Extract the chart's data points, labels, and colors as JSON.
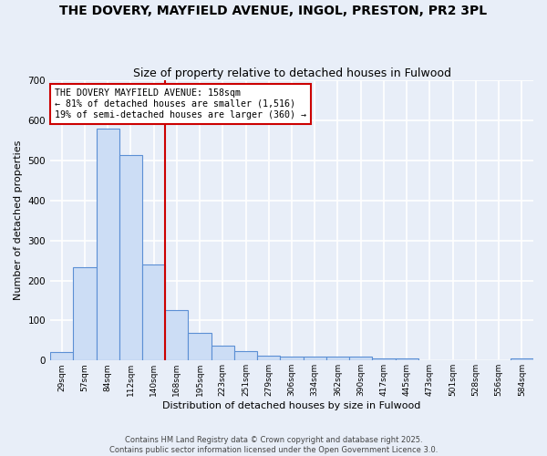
{
  "title": "THE DOVERY, MAYFIELD AVENUE, INGOL, PRESTON, PR2 3PL",
  "subtitle": "Size of property relative to detached houses in Fulwood",
  "xlabel": "Distribution of detached houses by size in Fulwood",
  "ylabel": "Number of detached properties",
  "bar_labels": [
    "29sqm",
    "57sqm",
    "84sqm",
    "112sqm",
    "140sqm",
    "168sqm",
    "195sqm",
    "223sqm",
    "251sqm",
    "279sqm",
    "306sqm",
    "334sqm",
    "362sqm",
    "390sqm",
    "417sqm",
    "445sqm",
    "473sqm",
    "501sqm",
    "528sqm",
    "556sqm",
    "584sqm"
  ],
  "bar_values": [
    22,
    233,
    580,
    513,
    240,
    126,
    68,
    38,
    24,
    13,
    9,
    10,
    10,
    10,
    5,
    5,
    0,
    0,
    0,
    0,
    5
  ],
  "bar_color": "#ccddf5",
  "bar_edgecolor": "#5b8fd4",
  "vline_x": 4.5,
  "vline_color": "#cc0000",
  "annotation_text": "THE DOVERY MAYFIELD AVENUE: 158sqm\n← 81% of detached houses are smaller (1,516)\n19% of semi-detached houses are larger (360) →",
  "annotation_box_color": "#ffffff",
  "annotation_box_edgecolor": "#cc0000",
  "ylim": [
    0,
    700
  ],
  "yticks": [
    0,
    100,
    200,
    300,
    400,
    500,
    600,
    700
  ],
  "background_color": "#e8eef8",
  "grid_color": "#ffffff",
  "footer_line1": "Contains HM Land Registry data © Crown copyright and database right 2025.",
  "footer_line2": "Contains public sector information licensed under the Open Government Licence 3.0."
}
